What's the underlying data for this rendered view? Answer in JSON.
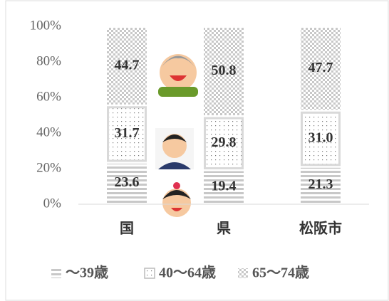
{
  "chart_data": {
    "type": "stacked_bar",
    "categories": [
      "国",
      "県",
      "松阪市"
    ],
    "series": [
      {
        "name": "～39歳",
        "color": "#c8c8c8",
        "values": [
          23.6,
          19.4,
          21.3
        ]
      },
      {
        "name": "40～64歳",
        "color": "#d4d4d4",
        "values": [
          31.7,
          29.8,
          31.0
        ],
        "value_labels": [
          "31.7",
          "29.8",
          "31.0"
        ]
      },
      {
        "name": "65～74歳",
        "color": "#c8c8c8",
        "values": [
          44.7,
          50.8,
          47.7
        ]
      }
    ],
    "ylim": [
      0,
      100
    ],
    "yticks": [
      {
        "value": 0,
        "label": "0%"
      },
      {
        "value": 20,
        "label": "20%"
      },
      {
        "value": 40,
        "label": "40%"
      },
      {
        "value": 60,
        "label": "60%"
      },
      {
        "value": 80,
        "label": "80%"
      },
      {
        "value": 100,
        "label": "100%"
      }
    ]
  }
}
